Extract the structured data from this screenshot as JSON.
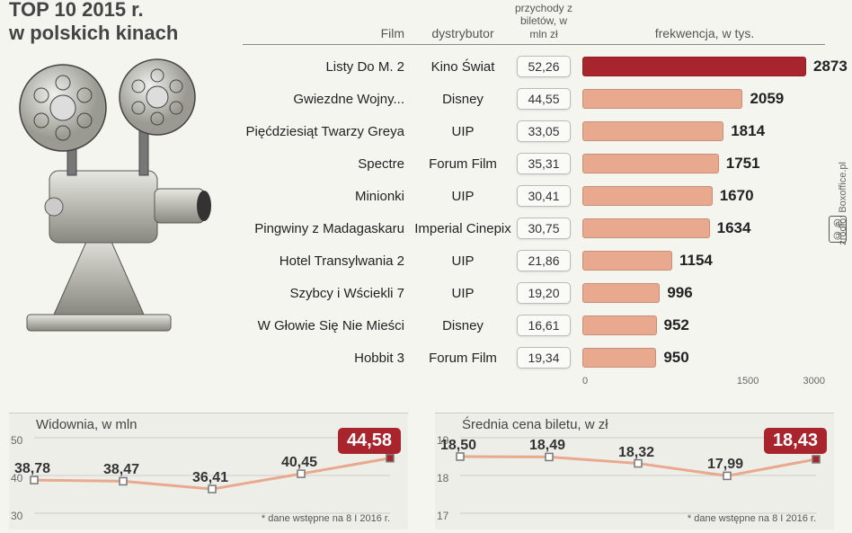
{
  "title_line1": "TOP 10 2015 r.",
  "title_line2": "w polskich kinach",
  "headers": {
    "film": "Film",
    "distributor": "dystrybutor",
    "revenue": "przychody z biletów, w mln zł",
    "attendance": "frekwencja, w tys."
  },
  "bar_colors": {
    "normal": "#e8a98f",
    "highlight": "#a8252e"
  },
  "attendance_max": 3000,
  "rows": [
    {
      "film": "Listy Do M. 2",
      "distributor": "Kino Świat",
      "revenue": "52,26",
      "attendance": 2873,
      "highlight": true
    },
    {
      "film": "Gwiezdne Wojny...",
      "distributor": "Disney",
      "revenue": "44,55",
      "attendance": 2059
    },
    {
      "film": "Pięćdziesiąt Twarzy Greya",
      "distributor": "UIP",
      "revenue": "33,05",
      "attendance": 1814
    },
    {
      "film": "Spectre",
      "distributor": "Forum Film",
      "revenue": "35,31",
      "attendance": 1751
    },
    {
      "film": "Minionki",
      "distributor": "UIP",
      "revenue": "30,41",
      "attendance": 1670
    },
    {
      "film": "Pingwiny z Madagaskaru",
      "distributor": "Imperial Cinepix",
      "revenue": "30,75",
      "attendance": 1634
    },
    {
      "film": "Hotel Transylwania 2",
      "distributor": "UIP",
      "revenue": "21,86",
      "attendance": 1154
    },
    {
      "film": "Szybcy i Wściekli 7",
      "distributor": "UIP",
      "revenue": "19,20",
      "attendance": 996
    },
    {
      "film": "W Głowie Się Nie Mieści",
      "distributor": "Disney",
      "revenue": "16,61",
      "attendance": 952
    },
    {
      "film": "Hobbit 3",
      "distributor": "Forum Film",
      "revenue": "19,34",
      "attendance": 950
    }
  ],
  "axis_ticks": [
    "0",
    "1500",
    "3000"
  ],
  "source": "źródło: Boxoffice.pl",
  "copyright_mark": "©℗",
  "note": "* dane wstępne na 8 I 2016 r.",
  "audience_chart": {
    "title": "Widownia, w mln",
    "yticks": [
      30,
      40,
      50
    ],
    "ymin": 30,
    "ymax": 50,
    "values": [
      38.78,
      38.47,
      36.41,
      40.45,
      44.58
    ],
    "labels": [
      "38,78",
      "38,47",
      "36,41",
      "40,45",
      "44,58"
    ],
    "line_color": "#e8a98f",
    "point_color": "#777",
    "badge_color": "#a8252e"
  },
  "price_chart": {
    "title": "Średnia cena biletu, w zł",
    "yticks": [
      17,
      18,
      19
    ],
    "ymin": 17,
    "ymax": 19,
    "values": [
      18.5,
      18.49,
      18.32,
      17.99,
      18.43
    ],
    "labels": [
      "18,50",
      "18,49",
      "18,32",
      "17,99",
      "18,43"
    ],
    "line_color": "#e8a98f",
    "point_color": "#777",
    "badge_color": "#a8252e"
  }
}
